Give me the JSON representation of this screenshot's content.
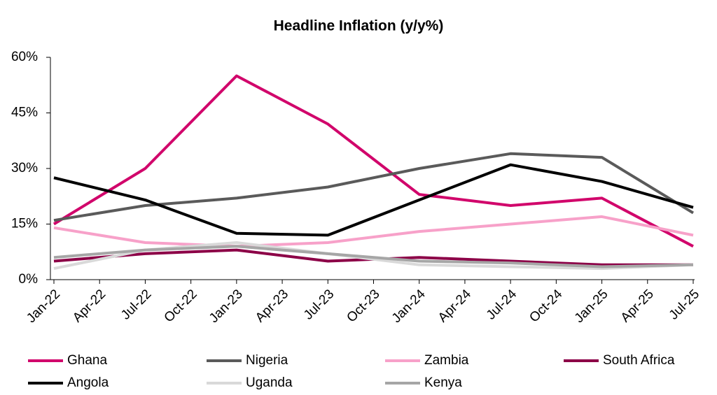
{
  "chart_data": {
    "type": "line",
    "title": "Headline Inflation (y/y%)",
    "x": [
      "Jan-22",
      "Jul-22",
      "Jan-23",
      "Jul-23",
      "Jan-24",
      "Jul-24",
      "Jan-25",
      "Jul-25"
    ],
    "xticks": [
      "Jan-22",
      "Apr-22",
      "Jul-22",
      "Oct-22",
      "Jan-23",
      "Apr-23",
      "Jul-23",
      "Oct-23",
      "Jan-24",
      "Apr-24",
      "Jul-24",
      "Oct-24",
      "Jan-25",
      "Apr-25",
      "Jul-25"
    ],
    "ylim": [
      0,
      60
    ],
    "yticks": [
      {
        "value": 0,
        "label": "0%"
      },
      {
        "value": 15,
        "label": "15%"
      },
      {
        "value": 30,
        "label": "30%"
      },
      {
        "value": 45,
        "label": "45%"
      },
      {
        "value": 60,
        "label": "60%"
      }
    ],
    "grid": false,
    "legend": "bottom",
    "series": [
      {
        "name": "Ghana",
        "color": "#d1056b",
        "values": [
          15,
          30,
          55,
          42,
          23,
          20,
          22,
          9
        ]
      },
      {
        "name": "Nigeria",
        "color": "#5a5a5a",
        "values": [
          16,
          20,
          22,
          25,
          30,
          34,
          33,
          18
        ]
      },
      {
        "name": "Zambia",
        "color": "#f7a1c9",
        "values": [
          14,
          10,
          9,
          10,
          13,
          15,
          17,
          12
        ]
      },
      {
        "name": "South Africa",
        "color": "#8c0047",
        "values": [
          5,
          7,
          8,
          5,
          6,
          5,
          4,
          4
        ]
      },
      {
        "name": "Angola",
        "color": "#000000",
        "values": [
          27.5,
          21.5,
          12.5,
          12,
          21.5,
          31,
          26.5,
          19.5
        ]
      },
      {
        "name": "Uganda",
        "color": "#d9d9d9",
        "values": [
          3,
          8,
          10,
          7,
          4,
          3.5,
          3,
          4
        ]
      },
      {
        "name": "Kenya",
        "color": "#a6a6a6",
        "values": [
          6,
          8,
          9,
          7,
          5,
          4.5,
          3.5,
          4
        ]
      }
    ]
  }
}
